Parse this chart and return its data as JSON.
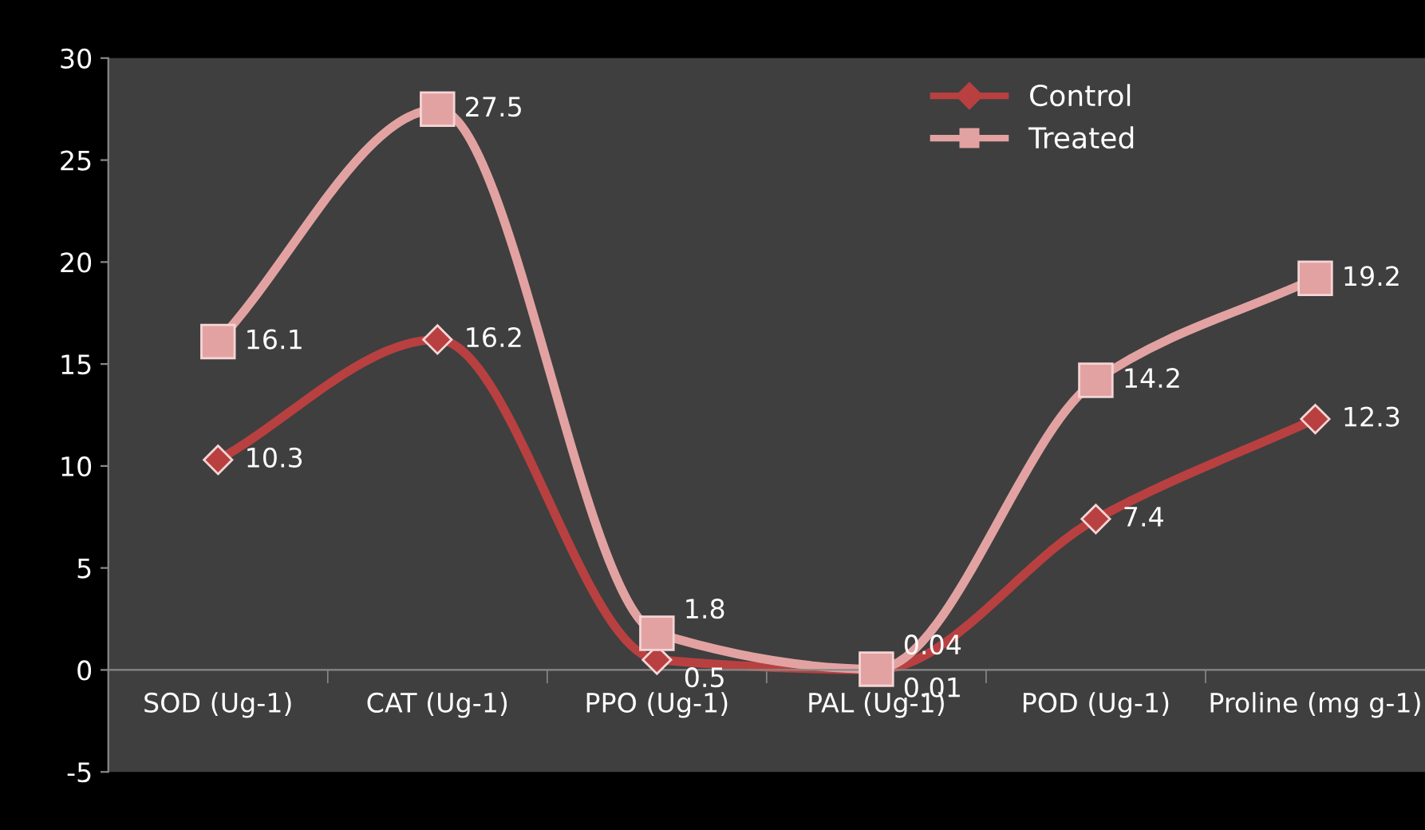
{
  "chart_data": {
    "type": "line",
    "categories": [
      "SOD (Ug-1)",
      "CAT (Ug-1)",
      "PPO (Ug-1)",
      "PAL (Ug-1)",
      "POD (Ug-1)",
      "Proline (mg g-1)"
    ],
    "series": [
      {
        "name": "Control",
        "color": "#b94040",
        "marker": "diamond",
        "values": [
          10.3,
          16.2,
          0.5,
          0.01,
          7.4,
          12.3
        ],
        "value_labels": [
          "10.3",
          "16.2",
          "0.5",
          "0.01",
          "7.4",
          "12.3"
        ]
      },
      {
        "name": "Treated",
        "color": "#e3a2a2",
        "marker": "square",
        "values": [
          16.1,
          27.5,
          1.8,
          0.04,
          14.2,
          19.2
        ],
        "value_labels": [
          "16.1",
          "27.5",
          "1.8",
          "0.04",
          "14.2",
          "19.2"
        ]
      }
    ],
    "ylim": [
      -5,
      30
    ],
    "yticks": [
      -5,
      0,
      5,
      10,
      15,
      20,
      25,
      30
    ],
    "grid": false,
    "legend": "top right",
    "line_style": "solid"
  }
}
